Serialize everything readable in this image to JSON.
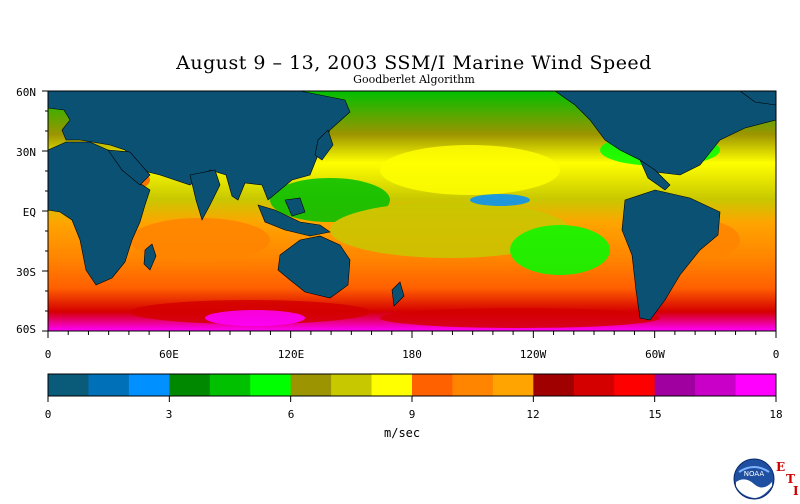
{
  "title": "August 9 – 13, 2003 SSM/I Marine Wind Speed",
  "subtitle": "Goodberlet Algorithm",
  "lat_labels": [
    "60N",
    "30N",
    "EQ",
    "30S",
    "60S"
  ],
  "lon_labels": [
    "0",
    "60E",
    "120E",
    "180",
    "120W",
    "60W",
    "0"
  ],
  "colorbar": {
    "unit": "m/sec",
    "ticks": [
      "0",
      "3",
      "6",
      "9",
      "12",
      "15",
      "18"
    ],
    "colors": [
      "#0a5a7a",
      "#0070b8",
      "#0090ff",
      "#008800",
      "#00c000",
      "#00ff00",
      "#9c9400",
      "#c8c800",
      "#ffff00",
      "#ff6000",
      "#ff8400",
      "#ffa400",
      "#a00000",
      "#d40000",
      "#ff0000",
      "#a000a0",
      "#c800c8",
      "#ff00ff"
    ]
  },
  "colors": {
    "land": "#0b5173",
    "coast": "#000000"
  },
  "logo": {
    "name": "NOAA",
    "letters": [
      "E",
      "T",
      "I"
    ]
  }
}
